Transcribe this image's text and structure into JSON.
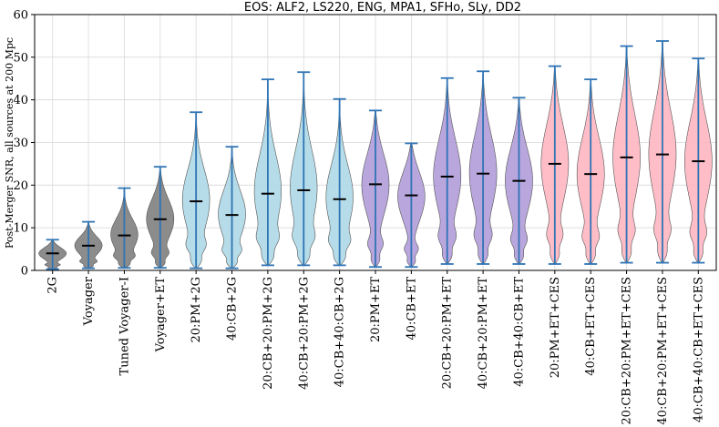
{
  "chart_data": {
    "type": "violin",
    "title": "EOS: ALF2, LS220, ENG, MPA1, SFHo, SLy, DD2",
    "xlabel": "",
    "ylabel": "Post-Merger SNR, all sources at 200 Mpc",
    "ylim": [
      0,
      60
    ],
    "yticks": [
      0,
      10,
      20,
      30,
      40,
      50,
      60
    ],
    "grid": true,
    "categories": [
      "2G",
      "Voyager",
      "Tuned Voyager-I",
      "Voyager+ET",
      "20:PM+2G",
      "40:CB+2G",
      "20:CB+20:PM+2G",
      "40:CB+20:PM+2G",
      "40:CB+40:CB+2G",
      "20:PM+ET",
      "40:CB+ET",
      "20:CB+20:PM+ET",
      "40:CB+20:PM+ET",
      "40:CB+40:CB+ET",
      "20:PM+ET+CES",
      "40:CB+ET+CES",
      "20:CB+20:PM+ET+CES",
      "40:CB+20:PM+ET+CES",
      "40:CB+40:CB+ET+CES"
    ],
    "min": [
      0.3,
      0.5,
      0.6,
      0.6,
      0.5,
      0.5,
      1.2,
      1.2,
      1.2,
      0.8,
      0.8,
      1.5,
      1.5,
      1.5,
      1.5,
      1.5,
      1.8,
      1.8,
      1.8
    ],
    "max": [
      7.2,
      11.4,
      19.3,
      24.3,
      37.1,
      29.0,
      44.8,
      46.5,
      40.2,
      37.5,
      29.8,
      45.1,
      46.7,
      40.5,
      47.9,
      44.8,
      52.6,
      53.8,
      49.7
    ],
    "median": [
      4.0,
      5.8,
      8.2,
      12.0,
      16.2,
      13.0,
      18.0,
      18.8,
      16.7,
      20.2,
      17.6,
      22.0,
      22.7,
      21.0,
      25.0,
      22.6,
      26.5,
      27.2,
      25.6
    ],
    "group": [
      "gray",
      "gray",
      "gray",
      "gray",
      "blue",
      "blue",
      "blue",
      "blue",
      "blue",
      "purple",
      "purple",
      "purple",
      "purple",
      "purple",
      "pink",
      "pink",
      "pink",
      "pink",
      "pink"
    ],
    "colors": {
      "gray": "#7f7f7f",
      "blue": "#add8e6",
      "purple": "#b19cd9",
      "pink": "#ffb6c1",
      "whisker": "#2f74b5",
      "median": "#000000"
    }
  }
}
